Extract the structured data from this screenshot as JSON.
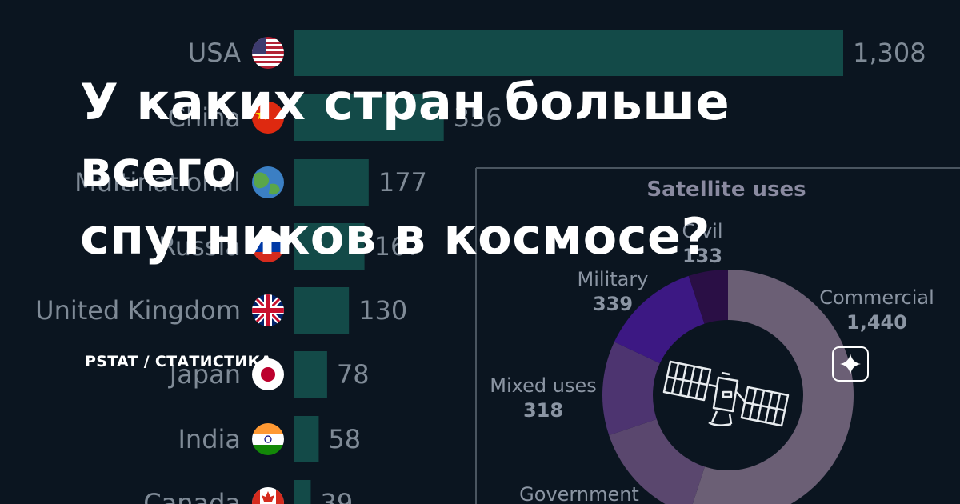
{
  "title_lines": [
    "У каких стран больше всего",
    "спутников в космосе?"
  ],
  "brand": "PSTAT / СТАТИСТИКА",
  "colors": {
    "background": "#0b1520",
    "bar": "#134a48",
    "text_muted": "#7f8a96",
    "divider": "#4a5560",
    "donut": [
      "#6b5f75",
      "#5a476e",
      "#4d3470",
      "#3c1883",
      "#2a0f45"
    ]
  },
  "icons": {
    "sparkle_button": "sparkle-icon",
    "satellite": "satellite-icon",
    "flags": [
      "usa-flag",
      "china-flag",
      "globe-flag",
      "russia-flag",
      "uk-flag",
      "japan-flag",
      "india-flag",
      "canada-flag"
    ]
  },
  "chart_data": [
    {
      "type": "bar",
      "orientation": "horizontal",
      "categories": [
        "USA",
        "China",
        "Multinational",
        "Russia",
        "United Kingdom",
        "Japan",
        "India",
        "Canada"
      ],
      "values": [
        1308,
        356,
        177,
        167,
        130,
        78,
        58,
        39
      ],
      "value_labels": [
        "1,308",
        "356",
        "177",
        "167",
        "130",
        "78",
        "58",
        "39"
      ],
      "xlim": [
        0,
        1308
      ]
    },
    {
      "type": "pie",
      "variant": "donut",
      "title": "Satellite uses",
      "labels": [
        "Commercial",
        "Government",
        "Mixed uses",
        "Military",
        "Civil"
      ],
      "values": [
        1440,
        388,
        318,
        339,
        133
      ],
      "value_labels": [
        "1,440",
        "",
        "318",
        "339",
        "133"
      ]
    }
  ]
}
